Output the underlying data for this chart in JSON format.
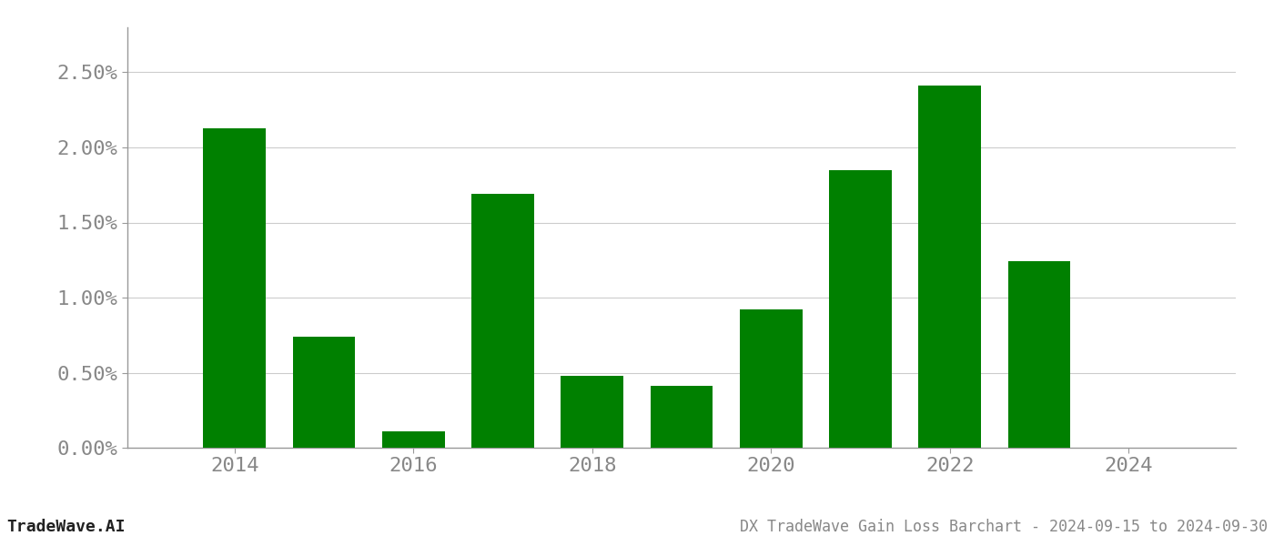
{
  "years": [
    2014,
    2015,
    2016,
    2017,
    2018,
    2019,
    2020,
    2021,
    2022,
    2023
  ],
  "values": [
    0.0213,
    0.0074,
    0.0011,
    0.0169,
    0.0048,
    0.0041,
    0.0092,
    0.0185,
    0.0241,
    0.0124
  ],
  "bar_color": "#008000",
  "background_color": "#ffffff",
  "grid_color": "#cccccc",
  "spine_color": "#999999",
  "title": "DX TradeWave Gain Loss Barchart - 2024-09-15 to 2024-09-30",
  "watermark": "TradeWave.AI",
  "ylim": [
    0,
    0.028
  ],
  "yticks": [
    0.0,
    0.005,
    0.01,
    0.015,
    0.02,
    0.025
  ],
  "ytick_labels": [
    "0.00%",
    "0.50%",
    "1.00%",
    "1.50%",
    "2.00%",
    "2.50%"
  ],
  "xtick_labels": [
    "2014",
    "2016",
    "2018",
    "2020",
    "2022",
    "2024"
  ],
  "xtick_values": [
    2014,
    2016,
    2018,
    2020,
    2022,
    2024
  ],
  "title_fontsize": 12,
  "watermark_fontsize": 13,
  "tick_fontsize": 16,
  "axis_label_color": "#888888",
  "watermark_color": "#222222",
  "bottom_text_color": "#888888",
  "xlim_left": 2012.8,
  "xlim_right": 2025.2,
  "bar_width": 0.7
}
